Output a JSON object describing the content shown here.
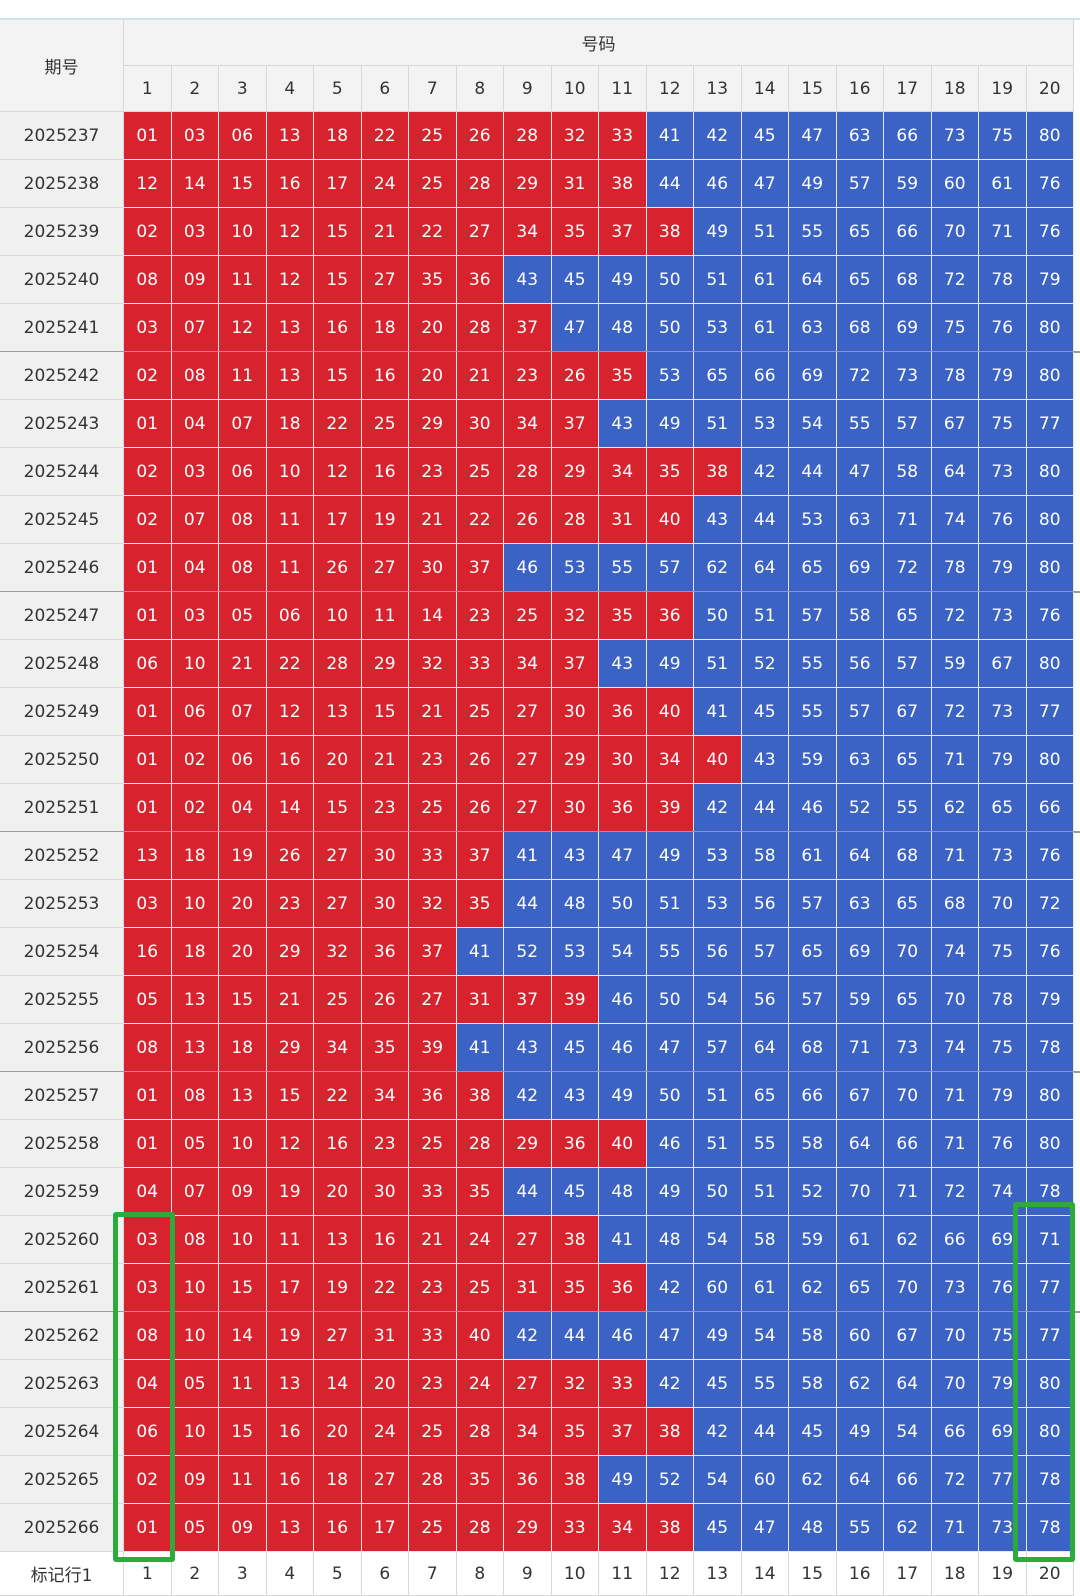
{
  "header": {
    "period": "期号",
    "numbers": "号码",
    "columns": [
      1,
      2,
      3,
      4,
      5,
      6,
      7,
      8,
      9,
      10,
      11,
      12,
      13,
      14,
      15,
      16,
      17,
      18,
      19,
      20
    ]
  },
  "colors": {
    "red": "#d8232e",
    "blue": "#3b63c6"
  },
  "rows": [
    {
      "period": "2025237",
      "red": [
        "01",
        "03",
        "06",
        "13",
        "18",
        "22",
        "25",
        "26",
        "28",
        "32",
        "33"
      ],
      "blue": [
        "41",
        "42",
        "45",
        "47",
        "63",
        "66",
        "73",
        "75",
        "80"
      ]
    },
    {
      "period": "2025238",
      "red": [
        "12",
        "14",
        "15",
        "16",
        "17",
        "24",
        "25",
        "28",
        "29",
        "31",
        "38"
      ],
      "blue": [
        "44",
        "46",
        "47",
        "49",
        "57",
        "59",
        "60",
        "61",
        "76"
      ]
    },
    {
      "period": "2025239",
      "red": [
        "02",
        "03",
        "10",
        "12",
        "15",
        "21",
        "22",
        "27",
        "34",
        "35",
        "37",
        "38"
      ],
      "blue": [
        "49",
        "51",
        "55",
        "65",
        "66",
        "70",
        "71",
        "76"
      ]
    },
    {
      "period": "2025240",
      "red": [
        "08",
        "09",
        "11",
        "12",
        "15",
        "27",
        "35",
        "36"
      ],
      "blue": [
        "43",
        "45",
        "49",
        "50",
        "51",
        "61",
        "64",
        "65",
        "68",
        "72",
        "78",
        "79"
      ]
    },
    {
      "period": "2025241",
      "red": [
        "03",
        "07",
        "12",
        "13",
        "16",
        "18",
        "20",
        "28",
        "37"
      ],
      "blue": [
        "47",
        "48",
        "50",
        "53",
        "61",
        "63",
        "68",
        "69",
        "75",
        "76",
        "80"
      ]
    },
    {
      "period": "2025242",
      "red": [
        "02",
        "08",
        "11",
        "13",
        "15",
        "16",
        "20",
        "21",
        "23",
        "26",
        "35"
      ],
      "blue": [
        "53",
        "65",
        "66",
        "69",
        "72",
        "73",
        "78",
        "79",
        "80"
      ]
    },
    {
      "period": "2025243",
      "red": [
        "01",
        "04",
        "07",
        "18",
        "22",
        "25",
        "29",
        "30",
        "34",
        "37"
      ],
      "blue": [
        "43",
        "49",
        "51",
        "53",
        "54",
        "55",
        "57",
        "67",
        "75",
        "77"
      ]
    },
    {
      "period": "2025244",
      "red": [
        "02",
        "03",
        "06",
        "10",
        "12",
        "16",
        "23",
        "25",
        "28",
        "29",
        "34",
        "35",
        "38"
      ],
      "blue": [
        "42",
        "44",
        "47",
        "58",
        "64",
        "73",
        "80"
      ]
    },
    {
      "period": "2025245",
      "red": [
        "02",
        "07",
        "08",
        "11",
        "17",
        "19",
        "21",
        "22",
        "26",
        "28",
        "31",
        "40"
      ],
      "blue": [
        "43",
        "44",
        "53",
        "63",
        "71",
        "74",
        "76",
        "80"
      ]
    },
    {
      "period": "2025246",
      "red": [
        "01",
        "04",
        "08",
        "11",
        "26",
        "27",
        "30",
        "37"
      ],
      "blue": [
        "46",
        "53",
        "55",
        "57",
        "62",
        "64",
        "65",
        "69",
        "72",
        "78",
        "79",
        "80"
      ]
    },
    {
      "period": "2025247",
      "red": [
        "01",
        "03",
        "05",
        "06",
        "10",
        "11",
        "14",
        "23",
        "25",
        "32",
        "35",
        "36"
      ],
      "blue": [
        "50",
        "51",
        "57",
        "58",
        "65",
        "72",
        "73",
        "76"
      ]
    },
    {
      "period": "2025248",
      "red": [
        "06",
        "10",
        "21",
        "22",
        "28",
        "29",
        "32",
        "33",
        "34",
        "37"
      ],
      "blue": [
        "43",
        "49",
        "51",
        "52",
        "55",
        "56",
        "57",
        "59",
        "67",
        "80"
      ]
    },
    {
      "period": "2025249",
      "red": [
        "01",
        "06",
        "07",
        "12",
        "13",
        "15",
        "21",
        "25",
        "27",
        "30",
        "36",
        "40"
      ],
      "blue": [
        "41",
        "45",
        "55",
        "57",
        "67",
        "72",
        "73",
        "77"
      ]
    },
    {
      "period": "2025250",
      "red": [
        "01",
        "02",
        "06",
        "16",
        "20",
        "21",
        "23",
        "26",
        "27",
        "29",
        "30",
        "34",
        "40"
      ],
      "blue": [
        "43",
        "59",
        "63",
        "65",
        "71",
        "79",
        "80"
      ]
    },
    {
      "period": "2025251",
      "red": [
        "01",
        "02",
        "04",
        "14",
        "15",
        "23",
        "25",
        "26",
        "27",
        "30",
        "36",
        "39"
      ],
      "blue": [
        "42",
        "44",
        "46",
        "52",
        "55",
        "62",
        "65",
        "66"
      ]
    },
    {
      "period": "2025252",
      "red": [
        "13",
        "18",
        "19",
        "26",
        "27",
        "30",
        "33",
        "37"
      ],
      "blue": [
        "41",
        "43",
        "47",
        "49",
        "53",
        "58",
        "61",
        "64",
        "68",
        "71",
        "73",
        "76"
      ]
    },
    {
      "period": "2025253",
      "red": [
        "03",
        "10",
        "20",
        "23",
        "27",
        "30",
        "32",
        "35"
      ],
      "blue": [
        "44",
        "48",
        "50",
        "51",
        "53",
        "56",
        "57",
        "63",
        "65",
        "68",
        "70",
        "72"
      ]
    },
    {
      "period": "2025254",
      "red": [
        "16",
        "18",
        "20",
        "29",
        "32",
        "36",
        "37"
      ],
      "blue": [
        "41",
        "52",
        "53",
        "54",
        "55",
        "56",
        "57",
        "65",
        "69",
        "70",
        "74",
        "75",
        "76"
      ]
    },
    {
      "period": "2025255",
      "red": [
        "05",
        "13",
        "15",
        "21",
        "25",
        "26",
        "27",
        "31",
        "37",
        "39"
      ],
      "blue": [
        "46",
        "50",
        "54",
        "56",
        "57",
        "59",
        "65",
        "70",
        "78",
        "79"
      ]
    },
    {
      "period": "2025256",
      "red": [
        "08",
        "13",
        "18",
        "29",
        "34",
        "35",
        "39"
      ],
      "blue": [
        "41",
        "43",
        "45",
        "46",
        "47",
        "57",
        "64",
        "68",
        "71",
        "73",
        "74",
        "75",
        "78"
      ]
    },
    {
      "period": "2025257",
      "red": [
        "01",
        "08",
        "13",
        "15",
        "22",
        "34",
        "36",
        "38"
      ],
      "blue": [
        "42",
        "43",
        "49",
        "50",
        "51",
        "65",
        "66",
        "67",
        "70",
        "71",
        "79",
        "80"
      ]
    },
    {
      "period": "2025258",
      "red": [
        "01",
        "05",
        "10",
        "12",
        "16",
        "23",
        "25",
        "28",
        "29",
        "36",
        "40"
      ],
      "blue": [
        "46",
        "51",
        "55",
        "58",
        "64",
        "66",
        "71",
        "76",
        "80"
      ]
    },
    {
      "period": "2025259",
      "red": [
        "04",
        "07",
        "09",
        "19",
        "20",
        "30",
        "33",
        "35"
      ],
      "blue": [
        "44",
        "45",
        "48",
        "49",
        "50",
        "51",
        "52",
        "70",
        "71",
        "72",
        "74",
        "78"
      ]
    },
    {
      "period": "2025260",
      "red": [
        "03",
        "08",
        "10",
        "11",
        "13",
        "16",
        "21",
        "24",
        "27",
        "38"
      ],
      "blue": [
        "41",
        "48",
        "54",
        "58",
        "59",
        "61",
        "62",
        "66",
        "69",
        "71"
      ]
    },
    {
      "period": "2025261",
      "red": [
        "03",
        "10",
        "15",
        "17",
        "19",
        "22",
        "23",
        "25",
        "31",
        "35",
        "36"
      ],
      "blue": [
        "42",
        "60",
        "61",
        "62",
        "65",
        "70",
        "73",
        "76",
        "77"
      ]
    },
    {
      "period": "2025262",
      "red": [
        "08",
        "10",
        "14",
        "19",
        "27",
        "31",
        "33",
        "40"
      ],
      "blue": [
        "42",
        "44",
        "46",
        "47",
        "49",
        "54",
        "58",
        "60",
        "67",
        "70",
        "75",
        "77"
      ]
    },
    {
      "period": "2025263",
      "red": [
        "04",
        "05",
        "11",
        "13",
        "14",
        "20",
        "23",
        "24",
        "27",
        "32",
        "33"
      ],
      "blue": [
        "42",
        "45",
        "55",
        "58",
        "62",
        "64",
        "70",
        "79",
        "80"
      ]
    },
    {
      "period": "2025264",
      "red": [
        "06",
        "10",
        "15",
        "16",
        "20",
        "24",
        "25",
        "28",
        "34",
        "35",
        "37",
        "38"
      ],
      "blue": [
        "42",
        "44",
        "45",
        "49",
        "54",
        "66",
        "69",
        "80"
      ]
    },
    {
      "period": "2025265",
      "red": [
        "02",
        "09",
        "11",
        "16",
        "18",
        "27",
        "28",
        "35",
        "36",
        "38"
      ],
      "blue": [
        "49",
        "52",
        "54",
        "60",
        "62",
        "64",
        "66",
        "72",
        "77",
        "78"
      ]
    },
    {
      "period": "2025266",
      "red": [
        "01",
        "05",
        "09",
        "13",
        "16",
        "17",
        "25",
        "28",
        "29",
        "33",
        "34",
        "38"
      ],
      "blue": [
        "45",
        "47",
        "48",
        "55",
        "62",
        "71",
        "73",
        "78"
      ]
    }
  ],
  "footer": {
    "label": "标记行1",
    "columns": [
      1,
      2,
      3,
      4,
      5,
      6,
      7,
      8,
      9,
      10,
      11,
      12,
      13,
      14,
      15,
      16,
      17,
      18,
      19,
      20
    ]
  }
}
